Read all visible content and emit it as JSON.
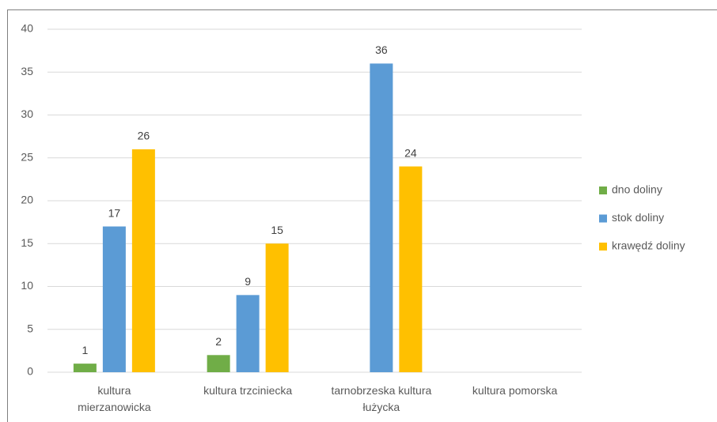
{
  "chart_data": {
    "type": "bar",
    "categories": [
      "kultura mierzanowicka",
      "kultura trzciniecka",
      "tarnobrzeska kultura łużycka",
      "kultura pomorska"
    ],
    "series": [
      {
        "name": "dno doliny",
        "color": "#70ad47",
        "values": [
          1,
          2,
          null,
          null
        ]
      },
      {
        "name": "stok doliny",
        "color": "#5b9bd5",
        "values": [
          17,
          9,
          36,
          null
        ]
      },
      {
        "name": "krawędź doliny",
        "color": "#ffc000",
        "values": [
          26,
          15,
          24,
          null
        ]
      }
    ],
    "ylim": [
      0,
      40
    ],
    "yticks": [
      0,
      5,
      10,
      15,
      20,
      25,
      30,
      35,
      40
    ],
    "grid": true,
    "legend": "right"
  }
}
